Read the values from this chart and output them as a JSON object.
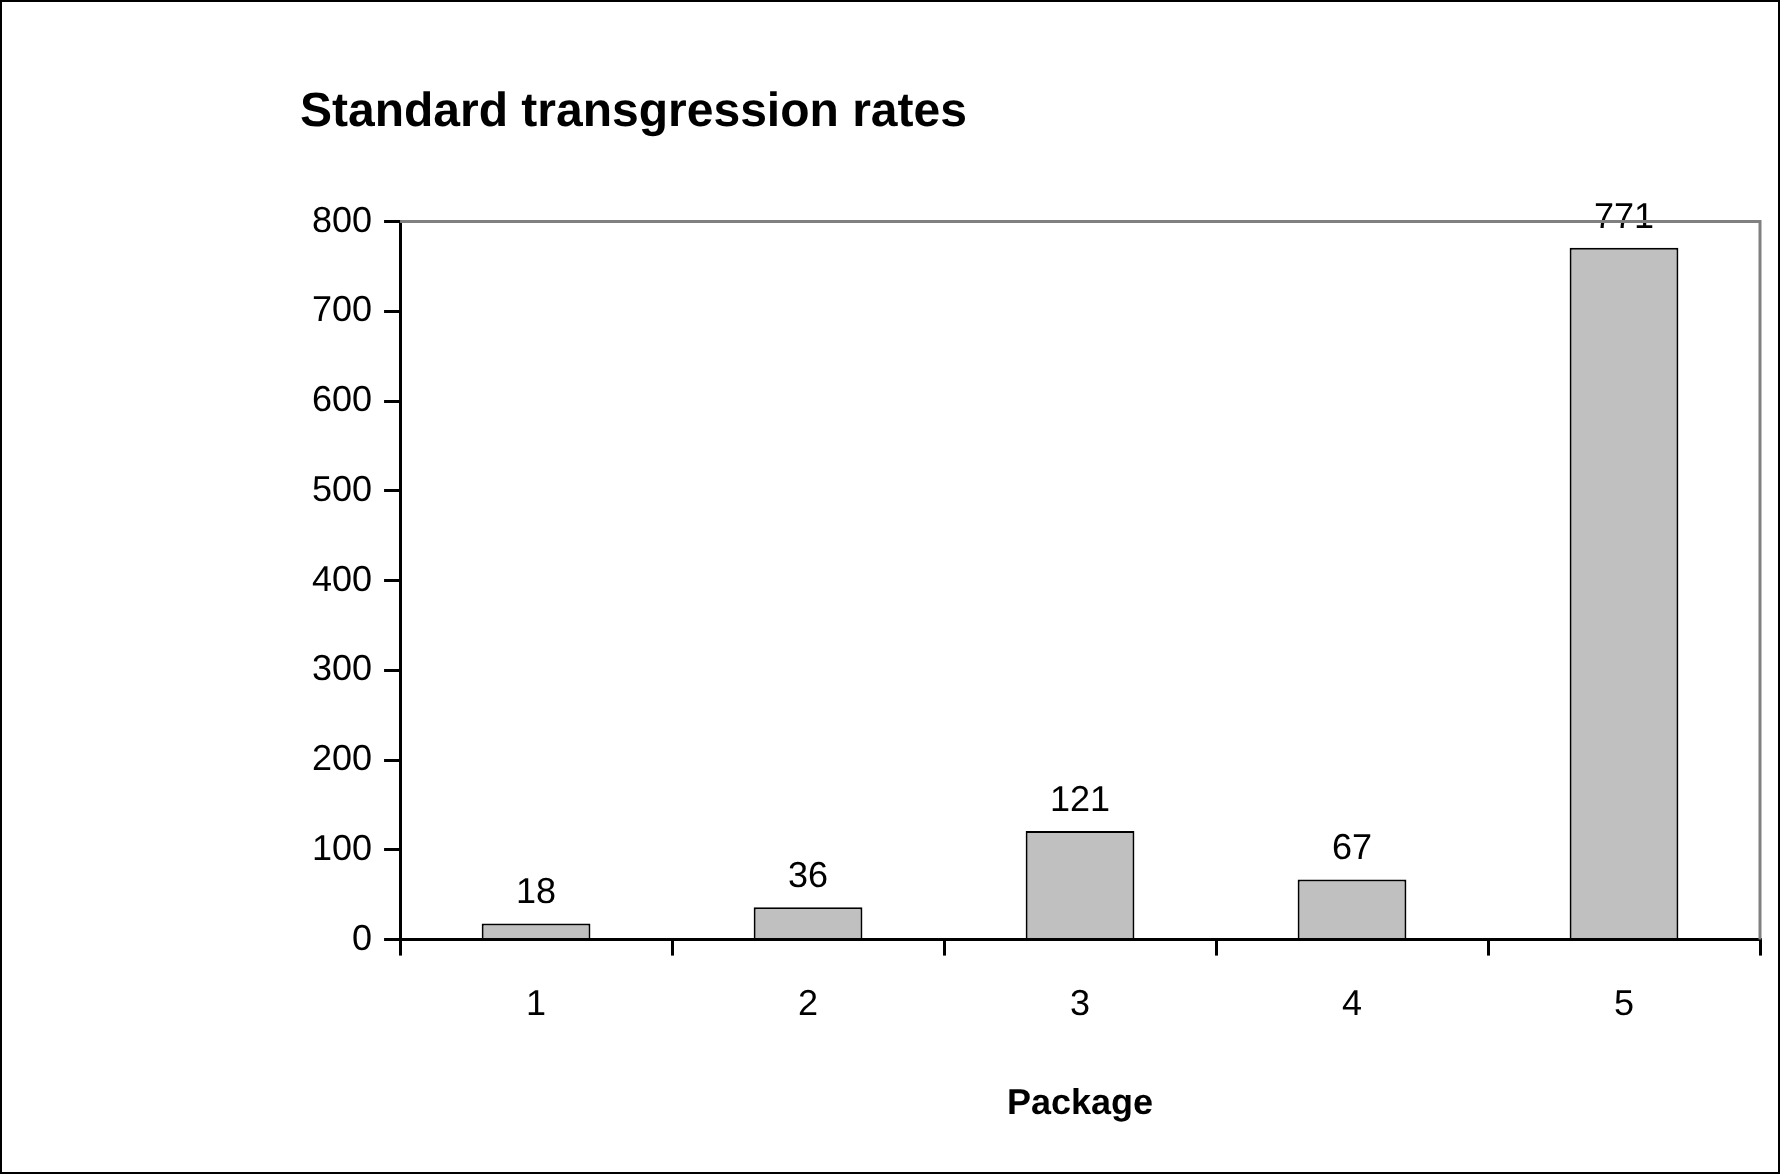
{
  "chart_data": {
    "type": "bar",
    "title": "Standard transgression rates",
    "xlabel": "Package",
    "categories": [
      "1",
      "2",
      "3",
      "4",
      "5"
    ],
    "values": [
      18,
      36,
      121,
      67,
      771
    ],
    "color": "#c0c0c0",
    "ylim": [
      0,
      800
    ],
    "yticks": [
      0,
      100,
      200,
      300,
      400,
      500,
      600,
      700,
      800
    ],
    "data_labels": true,
    "grid": false,
    "legend": false
  }
}
